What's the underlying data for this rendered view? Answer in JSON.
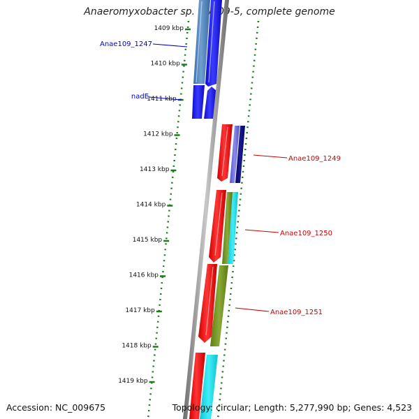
{
  "header": {
    "title": "Anaeromyxobacter sp. Fw109-5, complete genome"
  },
  "footer": {
    "accession": "Accession: NC_009675",
    "topology": "Topology: circular; Length: 5,277,990 bp; Genes: 4,523"
  },
  "ruler": {
    "unit": "kbp",
    "ticks": [
      {
        "label": "1409 kbp",
        "kbp": 1409
      },
      {
        "label": "1410 kbp",
        "kbp": 1410
      },
      {
        "label": "1411 kbp",
        "kbp": 1411
      },
      {
        "label": "1412 kbp",
        "kbp": 1412
      },
      {
        "label": "1413 kbp",
        "kbp": 1413
      },
      {
        "label": "1414 kbp",
        "kbp": 1414
      },
      {
        "label": "1415 kbp",
        "kbp": 1415
      },
      {
        "label": "1416 kbp",
        "kbp": 1416
      },
      {
        "label": "1417 kbp",
        "kbp": 1417
      },
      {
        "label": "1418 kbp",
        "kbp": 1418
      },
      {
        "label": "1419 kbp",
        "kbp": 1419
      }
    ]
  },
  "colors": {
    "forward_gene": "#1c1cf0",
    "forward_gene_alt": "#4a7fbf",
    "reverse_gene": "#e81010",
    "cds_teal": "#19d9e6",
    "cds_olive": "#6f8f1f",
    "cds_purple": "#6a6ad6",
    "cds_navy": "#0a0a6e",
    "backbone": "#8a8a8a",
    "ruler_ticks": "#1d7a1d",
    "label_forward": "#0000cc",
    "label_reverse": "#cc0000"
  },
  "genes": [
    {
      "name": "Anae109_1247",
      "strand": "+",
      "start_kbp": 1408.6,
      "end_kbp": 1410.65,
      "label_color": "#0000cc"
    },
    {
      "name": "nadE",
      "strand": "+",
      "start_kbp": 1410.65,
      "end_kbp": 1411.6,
      "label_color": "#0000cc"
    },
    {
      "name": "Anae109_1249",
      "strand": "-",
      "start_kbp": 1411.75,
      "end_kbp": 1413.4,
      "label_color": "#cc0000"
    },
    {
      "name": "Anae109_1250",
      "strand": "-",
      "start_kbp": 1413.6,
      "end_kbp": 1415.7,
      "label_color": "#cc0000"
    },
    {
      "name": "Anae109_1251",
      "strand": "-",
      "start_kbp": 1415.7,
      "end_kbp": 1418.0,
      "label_color": "#cc0000"
    },
    {
      "name": "",
      "strand": "-",
      "start_kbp": 1418.2,
      "end_kbp": 1420.2,
      "label_color": "#cc0000"
    }
  ]
}
